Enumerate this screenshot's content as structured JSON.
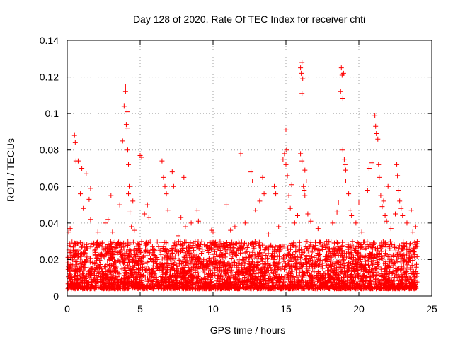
{
  "chart_data": {
    "type": "scatter",
    "title": "Day 128 of 2020, Rate Of TEC Index for receiver chti",
    "xlabel": "GPS time / hours",
    "ylabel": "ROTI / TECUs",
    "xlim": [
      0,
      25
    ],
    "ylim": [
      0,
      0.14
    ],
    "grid": true,
    "marker": "+",
    "x_ticks": [
      0,
      5,
      10,
      15,
      20,
      25
    ],
    "x_tick_labels": [
      "0",
      "5",
      "10",
      "15",
      "20",
      "25"
    ],
    "y_ticks": [
      0,
      0.02,
      0.04,
      0.06,
      0.08,
      0.1,
      0.12,
      0.14
    ],
    "y_tick_labels": [
      "0",
      "0.02",
      "0.04",
      "0.06",
      "0.08",
      "0.1",
      "0.12",
      "0.14"
    ],
    "series": [
      {
        "name": "ROTI",
        "color": "#ff0000",
        "points": [
          [
            0.1,
            0.035
          ],
          [
            0.2,
            0.037
          ],
          [
            0.25,
            0.024
          ],
          [
            0.5,
            0.088
          ],
          [
            0.55,
            0.084
          ],
          [
            0.6,
            0.074
          ],
          [
            0.75,
            0.074
          ],
          [
            0.9,
            0.056
          ],
          [
            1.0,
            0.07
          ],
          [
            1.1,
            0.048
          ],
          [
            1.3,
            0.067
          ],
          [
            1.5,
            0.053
          ],
          [
            1.6,
            0.059
          ],
          [
            1.6,
            0.042
          ],
          [
            2.1,
            0.035
          ],
          [
            2.6,
            0.04
          ],
          [
            2.8,
            0.042
          ],
          [
            3.0,
            0.055
          ],
          [
            3.1,
            0.035
          ],
          [
            3.6,
            0.05
          ],
          [
            3.8,
            0.085
          ],
          [
            3.9,
            0.104
          ],
          [
            4.0,
            0.115
          ],
          [
            4.0,
            0.112
          ],
          [
            4.05,
            0.094
          ],
          [
            4.1,
            0.092
          ],
          [
            4.1,
            0.101
          ],
          [
            4.15,
            0.08
          ],
          [
            4.2,
            0.072
          ],
          [
            4.2,
            0.056
          ],
          [
            4.25,
            0.06
          ],
          [
            4.3,
            0.046
          ],
          [
            4.4,
            0.038
          ],
          [
            4.5,
            0.052
          ],
          [
            4.6,
            0.036
          ],
          [
            5.0,
            0.077
          ],
          [
            5.1,
            0.076
          ],
          [
            5.3,
            0.045
          ],
          [
            5.5,
            0.05
          ],
          [
            5.6,
            0.043
          ],
          [
            6.5,
            0.074
          ],
          [
            6.6,
            0.065
          ],
          [
            6.7,
            0.06
          ],
          [
            6.8,
            0.056
          ],
          [
            6.9,
            0.047
          ],
          [
            7.2,
            0.068
          ],
          [
            7.3,
            0.06
          ],
          [
            7.6,
            0.033
          ],
          [
            7.8,
            0.043
          ],
          [
            8.0,
            0.065
          ],
          [
            8.1,
            0.038
          ],
          [
            8.5,
            0.04
          ],
          [
            8.9,
            0.047
          ],
          [
            9.0,
            0.041
          ],
          [
            9.4,
            0.028
          ],
          [
            9.6,
            0.025
          ],
          [
            9.9,
            0.036
          ],
          [
            10.0,
            0.035
          ],
          [
            10.5,
            0.025
          ],
          [
            10.9,
            0.05
          ],
          [
            11.2,
            0.036
          ],
          [
            11.5,
            0.038
          ],
          [
            11.9,
            0.078
          ],
          [
            12.2,
            0.04
          ],
          [
            12.6,
            0.068
          ],
          [
            12.7,
            0.063
          ],
          [
            12.9,
            0.047
          ],
          [
            13.2,
            0.052
          ],
          [
            13.4,
            0.065
          ],
          [
            13.5,
            0.056
          ],
          [
            13.8,
            0.034
          ],
          [
            14.2,
            0.06
          ],
          [
            14.3,
            0.056
          ],
          [
            14.5,
            0.038
          ],
          [
            14.8,
            0.075
          ],
          [
            14.9,
            0.078
          ],
          [
            15.0,
            0.091
          ],
          [
            15.0,
            0.072
          ],
          [
            15.05,
            0.08
          ],
          [
            15.1,
            0.066
          ],
          [
            15.2,
            0.055
          ],
          [
            15.3,
            0.048
          ],
          [
            15.4,
            0.061
          ],
          [
            15.6,
            0.04
          ],
          [
            15.8,
            0.044
          ],
          [
            16.0,
            0.125
          ],
          [
            16.05,
            0.122
          ],
          [
            16.1,
            0.128
          ],
          [
            16.1,
            0.111
          ],
          [
            16.15,
            0.119
          ],
          [
            16.0,
            0.078
          ],
          [
            16.2,
            0.06
          ],
          [
            16.25,
            0.058
          ],
          [
            16.3,
            0.055
          ],
          [
            16.4,
            0.063
          ],
          [
            16.1,
            0.074
          ],
          [
            16.3,
            0.069
          ],
          [
            16.5,
            0.045
          ],
          [
            16.7,
            0.041
          ],
          [
            17.2,
            0.037
          ],
          [
            17.8,
            0.03
          ],
          [
            18.2,
            0.04
          ],
          [
            18.5,
            0.046
          ],
          [
            18.6,
            0.051
          ],
          [
            18.75,
            0.112
          ],
          [
            18.8,
            0.125
          ],
          [
            18.85,
            0.121
          ],
          [
            18.9,
            0.108
          ],
          [
            18.95,
            0.122
          ],
          [
            18.9,
            0.08
          ],
          [
            19.0,
            0.075
          ],
          [
            19.05,
            0.072
          ],
          [
            19.1,
            0.069
          ],
          [
            19.1,
            0.063
          ],
          [
            19.3,
            0.056
          ],
          [
            19.4,
            0.047
          ],
          [
            19.5,
            0.044
          ],
          [
            19.8,
            0.04
          ],
          [
            20.0,
            0.051
          ],
          [
            20.2,
            0.035
          ],
          [
            20.6,
            0.058
          ],
          [
            20.7,
            0.07
          ],
          [
            20.9,
            0.073
          ],
          [
            21.1,
            0.099
          ],
          [
            21.15,
            0.093
          ],
          [
            21.2,
            0.089
          ],
          [
            21.3,
            0.086
          ],
          [
            21.35,
            0.072
          ],
          [
            21.4,
            0.065
          ],
          [
            21.5,
            0.055
          ],
          [
            21.6,
            0.049
          ],
          [
            21.7,
            0.052
          ],
          [
            21.8,
            0.044
          ],
          [
            21.9,
            0.041
          ],
          [
            22.0,
            0.06
          ],
          [
            22.2,
            0.037
          ],
          [
            22.5,
            0.045
          ],
          [
            22.6,
            0.072
          ],
          [
            22.65,
            0.066
          ],
          [
            22.7,
            0.058
          ],
          [
            22.8,
            0.052
          ],
          [
            22.9,
            0.048
          ],
          [
            23.0,
            0.044
          ],
          [
            23.3,
            0.04
          ],
          [
            23.6,
            0.047
          ],
          [
            23.7,
            0.035
          ],
          [
            23.9,
            0.038
          ],
          [
            24.0,
            0.03
          ]
        ]
      }
    ],
    "dense_band": {
      "description_values": "bulk of points from 0 to 24 h between roughly 0.003 and 0.035 TECU/min",
      "x_range": [
        0,
        24
      ],
      "y_typical_range": [
        0.004,
        0.03
      ]
    }
  }
}
